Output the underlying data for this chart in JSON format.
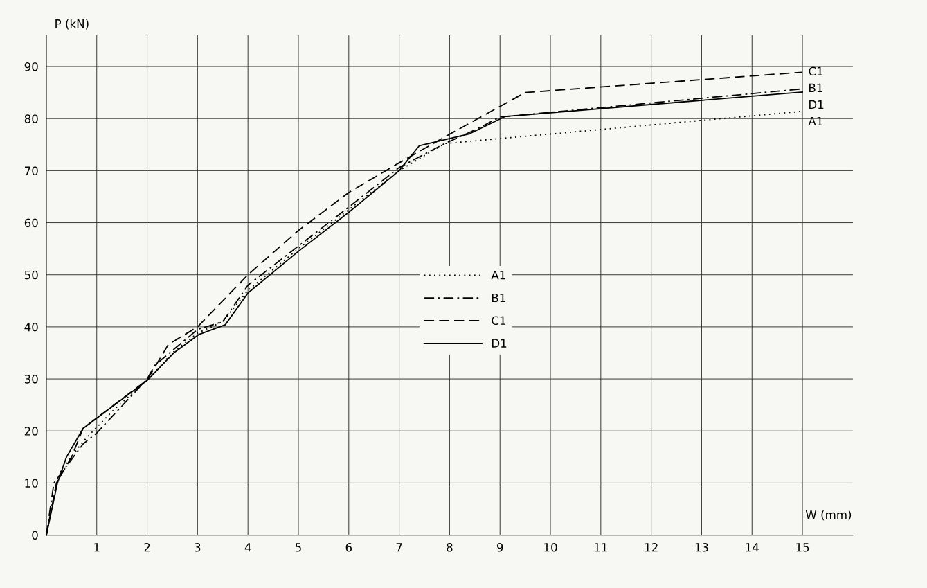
{
  "chart_data": {
    "type": "line",
    "xlabel": "W (mm)",
    "ylabel": "P (kN)",
    "xlim": [
      0,
      16
    ],
    "ylim": [
      0,
      96
    ],
    "xticks": [
      1,
      2,
      3,
      4,
      5,
      6,
      7,
      8,
      9,
      10,
      11,
      12,
      13,
      14,
      15
    ],
    "yticks": [
      0,
      10,
      20,
      30,
      40,
      50,
      60,
      70,
      80,
      90
    ],
    "grid": true,
    "legend": "center",
    "marker": "none",
    "series": [
      {
        "name": "A1",
        "color": "#000000",
        "line_style": "dotted",
        "x": [
          0,
          0.2,
          0.3,
          0.73,
          1.33,
          2,
          2.5,
          3,
          3.5,
          4,
          5,
          6,
          7,
          7.9,
          15
        ],
        "values": [
          0,
          10,
          12.5,
          18,
          24,
          29.7,
          35,
          38.8,
          41,
          47,
          55,
          62.5,
          70,
          75.2,
          81.4
        ]
      },
      {
        "name": "B1",
        "color": "#000000",
        "line_style": "dashdot",
        "x": [
          0,
          0.15,
          0.73,
          1,
          2,
          2.15,
          3,
          3.5,
          4,
          5,
          6,
          7,
          7.9,
          8.5,
          9,
          15
        ],
        "values": [
          0,
          10,
          17.5,
          19.6,
          30,
          32.6,
          39.5,
          41,
          48,
          55.5,
          63,
          70.6,
          75.2,
          77.8,
          80.3,
          85.7
        ]
      },
      {
        "name": "C1",
        "color": "#000000",
        "line_style": "dashed",
        "x": [
          0,
          0.2,
          0.5,
          0.73,
          1,
          2,
          2.42,
          3,
          4,
          5,
          6,
          7,
          8,
          9.5,
          15
        ],
        "values": [
          0,
          10,
          15,
          20.5,
          22.5,
          29.8,
          36.6,
          40,
          50,
          58.5,
          65.8,
          71.5,
          77,
          85,
          88.9
        ]
      },
      {
        "name": "D1",
        "color": "#000000",
        "line_style": "solid",
        "x": [
          0,
          0.22,
          0.4,
          0.73,
          2,
          2.53,
          3.02,
          3.55,
          4,
          5,
          6,
          7,
          7.4,
          8.4,
          9.1,
          15
        ],
        "values": [
          0,
          10,
          15,
          20.5,
          29.7,
          35,
          38.5,
          40.4,
          46.5,
          54.5,
          62,
          70,
          74.8,
          77.1,
          80.4,
          85.1
        ]
      }
    ]
  }
}
